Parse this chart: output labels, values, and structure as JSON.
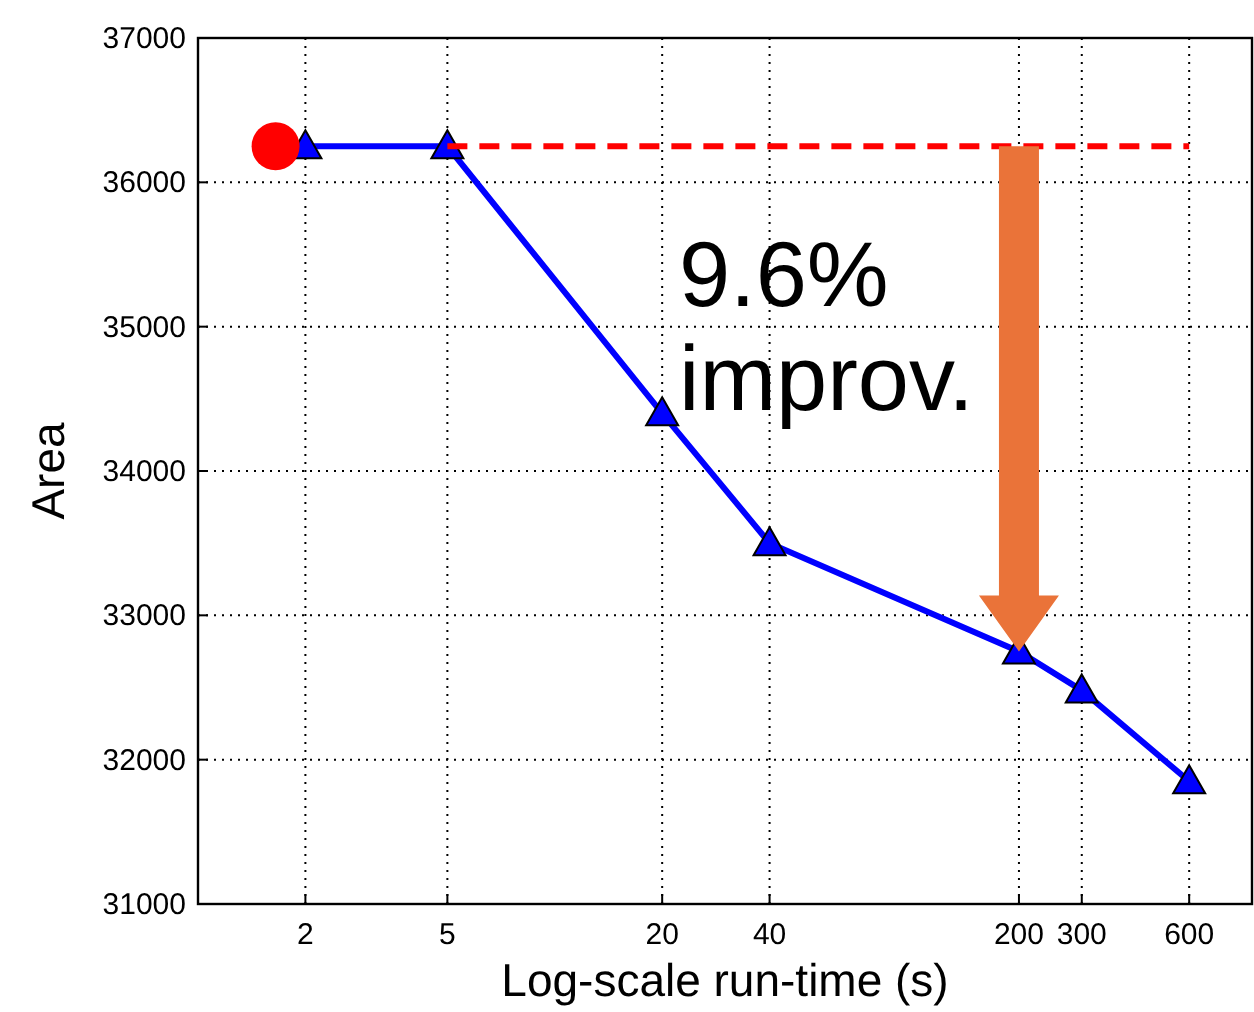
{
  "chart_data": {
    "type": "line",
    "xlabel": "Log-scale run-time (s)",
    "ylabel": "Area",
    "log": "x",
    "grid": true,
    "xlim": [
      1,
      900
    ],
    "ylim": [
      31000,
      37000
    ],
    "xticks": [
      2,
      5,
      20,
      40,
      200,
      300,
      600
    ],
    "yticks": [
      31000,
      32000,
      33000,
      34000,
      35000,
      36000,
      37000
    ],
    "series": [
      {
        "type": "line",
        "color": "#0000ff",
        "marker": "triangle",
        "line_style": "solid",
        "x": [
          2,
          5,
          20,
          40,
          200,
          300,
          600
        ],
        "values": [
          36250,
          36250,
          34400,
          33500,
          32750,
          32480,
          31850
        ]
      },
      {
        "type": "line",
        "color": "#ff0000",
        "marker": "none",
        "line_style": "dashed",
        "x": [
          5,
          600
        ],
        "values": [
          36250,
          36250
        ]
      },
      {
        "type": "scatter",
        "color": "#ff0000",
        "marker": "circle",
        "x": [
          1.65
        ],
        "values": [
          36250
        ]
      }
    ],
    "annotations": [
      {
        "text": "9.6% improv.",
        "x": 200,
        "y": 36250
      }
    ]
  }
}
